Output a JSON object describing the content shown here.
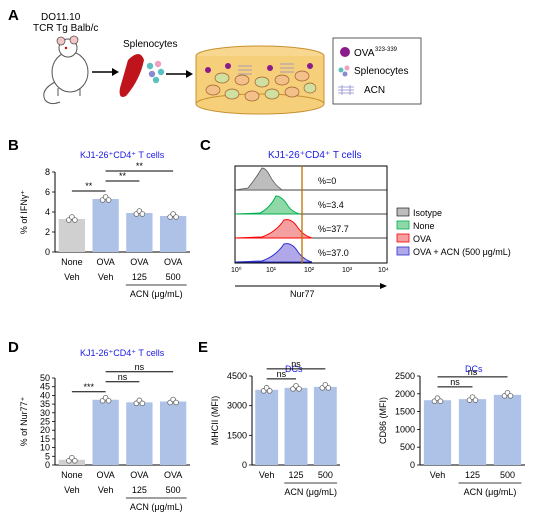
{
  "panels": {
    "A": {
      "letter": "A",
      "mouse_line1": "DO11.10",
      "mouse_line2": "TCR Tg Balb/c",
      "splenocytes_label": "Splenocytes",
      "legend": {
        "ova": "OVA",
        "ova_sup": "323-339",
        "splen": "Splenocytes",
        "acn": "ACN"
      }
    },
    "B": {
      "letter": "B"
    },
    "C": {
      "letter": "C",
      "title": "KJ1-26⁺CD4⁺ T cells",
      "xlabel": "Nur77",
      "ticks": [
        "10⁰",
        "10¹",
        "10²",
        "10³",
        "10⁴"
      ],
      "percents": [
        "%=0",
        "%=3.4",
        "%=37.7",
        "%=37.0"
      ],
      "legend": [
        "Isotype",
        "None",
        "OVA",
        "OVA + ACN (500 μg/mL)"
      ],
      "colors": [
        "#888888",
        "#00b050",
        "#ff0000",
        "#2f2fd0"
      ]
    },
    "D": {
      "letter": "D"
    },
    "E": {
      "letter": "E"
    }
  },
  "chart_data": [
    {
      "id": "B",
      "type": "bar",
      "title": "KJ1-26⁺CD4⁺ T cells",
      "ylabel": "% of IFNγ⁺",
      "ylim": [
        0,
        8
      ],
      "yticks": [
        "0",
        "2",
        "4",
        "6",
        "8"
      ],
      "categories": [
        "None",
        "OVA",
        "OVA",
        "OVA"
      ],
      "row2": [
        "Veh",
        "Veh",
        "125",
        "500"
      ],
      "group_label": "ACN (μg/mL)",
      "values": [
        3.3,
        5.3,
        3.9,
        3.6
      ],
      "colors": [
        "#d0d0d0",
        "#aec2e8",
        "#aec2e8",
        "#aec2e8"
      ],
      "sig": [
        {
          "from": 0,
          "to": 1,
          "label": "**"
        },
        {
          "from": 1,
          "to": 2,
          "label": "**"
        },
        {
          "from": 1,
          "to": 3,
          "label": "**"
        }
      ]
    },
    {
      "id": "D",
      "type": "bar",
      "title": "KJ1-26⁺CD4⁺ T cells",
      "ylabel": "% of Nur77⁺",
      "ylim": [
        0,
        50
      ],
      "yticks": [
        "0",
        "5",
        "10",
        "15",
        "20",
        "25",
        "30",
        "35",
        "40",
        "45",
        "50"
      ],
      "categories": [
        "None",
        "OVA",
        "OVA",
        "OVA"
      ],
      "row2": [
        "Veh",
        "Veh",
        "125",
        "500"
      ],
      "group_label": "ACN (μg/mL)",
      "values": [
        3,
        37.5,
        36,
        36.5
      ],
      "colors": [
        "#d0d0d0",
        "#aec2e8",
        "#aec2e8",
        "#aec2e8"
      ],
      "sig": [
        {
          "from": 0,
          "to": 1,
          "label": "***"
        },
        {
          "from": 1,
          "to": 2,
          "label": "ns"
        },
        {
          "from": 1,
          "to": 3,
          "label": "ns"
        }
      ]
    },
    {
      "id": "E1",
      "type": "bar",
      "title": "DCs",
      "ylabel": "MHCII (MFI)",
      "ylim": [
        0,
        4500
      ],
      "yticks": [
        "0",
        "1500",
        "3000",
        "4500"
      ],
      "categories": [
        "Veh",
        "125",
        "500"
      ],
      "group_label": "ACN (μg/mL)",
      "values": [
        3800,
        3900,
        3950
      ],
      "colors": [
        "#aec2e8",
        "#aec2e8",
        "#aec2e8"
      ],
      "sig": [
        {
          "from": 0,
          "to": 1,
          "label": "ns"
        },
        {
          "from": 0,
          "to": 2,
          "label": "ns"
        }
      ]
    },
    {
      "id": "E2",
      "type": "bar",
      "title": "DCs",
      "ylabel": "CD86 (MFI)",
      "ylim": [
        0,
        2500
      ],
      "yticks": [
        "0",
        "500",
        "1000",
        "1500",
        "2000",
        "2500"
      ],
      "categories": [
        "Veh",
        "125",
        "500"
      ],
      "group_label": "ACN (μg/mL)",
      "values": [
        1820,
        1850,
        1970
      ],
      "colors": [
        "#aec2e8",
        "#aec2e8",
        "#aec2e8"
      ],
      "sig": [
        {
          "from": 0,
          "to": 1,
          "label": "ns"
        },
        {
          "from": 0,
          "to": 2,
          "label": "ns"
        }
      ]
    }
  ]
}
